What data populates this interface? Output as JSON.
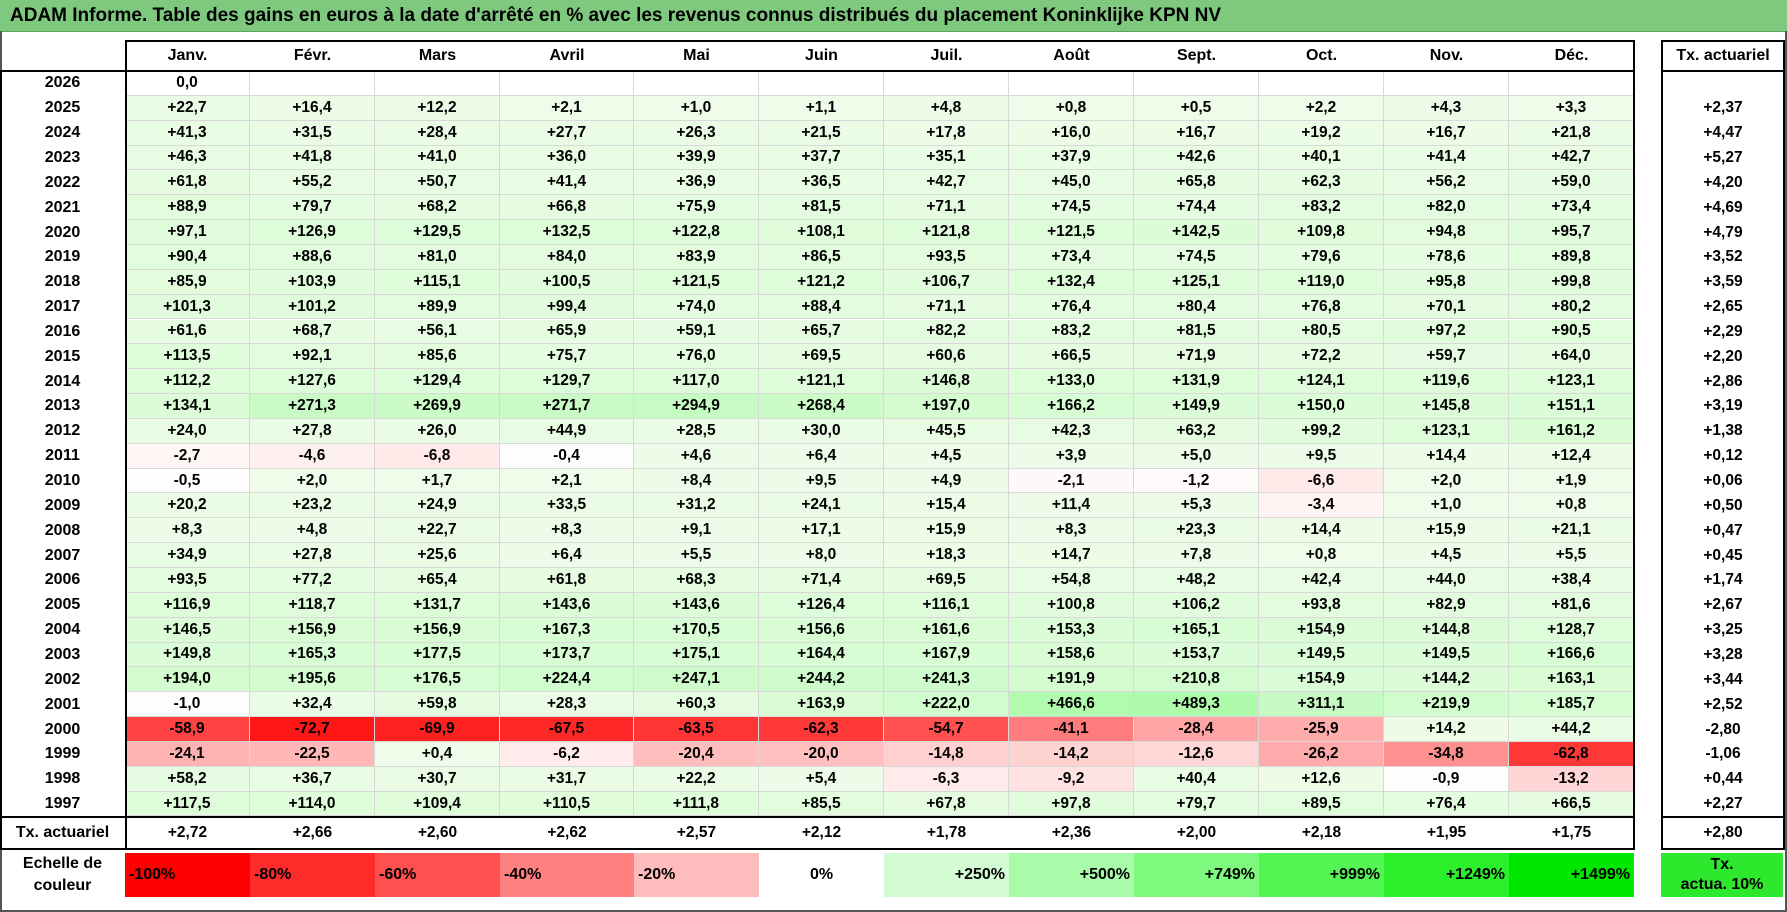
{
  "title": "ADAM Informe. Table des gains en euros à la date d'arrêté en % avec les revenus connus distribués du placement Koninklijke KPN NV",
  "months": [
    "Janv.",
    "Févr.",
    "Mars",
    "Avril",
    "Mai",
    "Juin",
    "Juil.",
    "Août",
    "Sept.",
    "Oct.",
    "Nov.",
    "Déc."
  ],
  "rate_header": "Tx. actuariel",
  "rows": [
    {
      "year": "2026",
      "values": [
        "0,0",
        "",
        "",
        "",
        "",
        "",
        "",
        "",
        "",
        "",
        "",
        ""
      ],
      "rate": ""
    },
    {
      "year": "2025",
      "values": [
        "+22,7",
        "+16,4",
        "+12,2",
        "+2,1",
        "+1,0",
        "+1,1",
        "+4,8",
        "+0,8",
        "+0,5",
        "+2,2",
        "+4,3",
        "+3,3"
      ],
      "rate": "+2,37"
    },
    {
      "year": "2024",
      "values": [
        "+41,3",
        "+31,5",
        "+28,4",
        "+27,7",
        "+26,3",
        "+21,5",
        "+17,8",
        "+16,0",
        "+16,7",
        "+19,2",
        "+16,7",
        "+21,8"
      ],
      "rate": "+4,47"
    },
    {
      "year": "2023",
      "values": [
        "+46,3",
        "+41,8",
        "+41,0",
        "+36,0",
        "+39,9",
        "+37,7",
        "+35,1",
        "+37,9",
        "+42,6",
        "+40,1",
        "+41,4",
        "+42,7"
      ],
      "rate": "+5,27"
    },
    {
      "year": "2022",
      "values": [
        "+61,8",
        "+55,2",
        "+50,7",
        "+41,4",
        "+36,9",
        "+36,5",
        "+42,7",
        "+45,0",
        "+65,8",
        "+62,3",
        "+56,2",
        "+59,0"
      ],
      "rate": "+4,20"
    },
    {
      "year": "2021",
      "values": [
        "+88,9",
        "+79,7",
        "+68,2",
        "+66,8",
        "+75,9",
        "+81,5",
        "+71,1",
        "+74,5",
        "+74,4",
        "+83,2",
        "+82,0",
        "+73,4"
      ],
      "rate": "+4,69"
    },
    {
      "year": "2020",
      "values": [
        "+97,1",
        "+126,9",
        "+129,5",
        "+132,5",
        "+122,8",
        "+108,1",
        "+121,8",
        "+121,5",
        "+142,5",
        "+109,8",
        "+94,8",
        "+95,7"
      ],
      "rate": "+4,79"
    },
    {
      "year": "2019",
      "values": [
        "+90,4",
        "+88,6",
        "+81,0",
        "+84,0",
        "+83,9",
        "+86,5",
        "+93,5",
        "+73,4",
        "+74,5",
        "+79,6",
        "+78,6",
        "+89,8"
      ],
      "rate": "+3,52"
    },
    {
      "year": "2018",
      "values": [
        "+85,9",
        "+103,9",
        "+115,1",
        "+100,5",
        "+121,5",
        "+121,2",
        "+106,7",
        "+132,4",
        "+125,1",
        "+119,0",
        "+95,8",
        "+99,8"
      ],
      "rate": "+3,59"
    },
    {
      "year": "2017",
      "values": [
        "+101,3",
        "+101,2",
        "+89,9",
        "+99,4",
        "+74,0",
        "+88,4",
        "+71,1",
        "+76,4",
        "+80,4",
        "+76,8",
        "+70,1",
        "+80,2"
      ],
      "rate": "+2,65"
    },
    {
      "year": "2016",
      "values": [
        "+61,6",
        "+68,7",
        "+56,1",
        "+65,9",
        "+59,1",
        "+65,7",
        "+82,2",
        "+83,2",
        "+81,5",
        "+80,5",
        "+97,2",
        "+90,5"
      ],
      "rate": "+2,29"
    },
    {
      "year": "2015",
      "values": [
        "+113,5",
        "+92,1",
        "+85,6",
        "+75,7",
        "+76,0",
        "+69,5",
        "+60,6",
        "+66,5",
        "+71,9",
        "+72,2",
        "+59,7",
        "+64,0"
      ],
      "rate": "+2,20"
    },
    {
      "year": "2014",
      "values": [
        "+112,2",
        "+127,6",
        "+129,4",
        "+129,7",
        "+117,0",
        "+121,1",
        "+146,8",
        "+133,0",
        "+131,9",
        "+124,1",
        "+119,6",
        "+123,1"
      ],
      "rate": "+2,86"
    },
    {
      "year": "2013",
      "values": [
        "+134,1",
        "+271,3",
        "+269,9",
        "+271,7",
        "+294,9",
        "+268,4",
        "+197,0",
        "+166,2",
        "+149,9",
        "+150,0",
        "+145,8",
        "+151,1"
      ],
      "rate": "+3,19"
    },
    {
      "year": "2012",
      "values": [
        "+24,0",
        "+27,8",
        "+26,0",
        "+44,9",
        "+28,5",
        "+30,0",
        "+45,5",
        "+42,3",
        "+63,2",
        "+99,2",
        "+123,1",
        "+161,2"
      ],
      "rate": "+1,38"
    },
    {
      "year": "2011",
      "values": [
        "-2,7",
        "-4,6",
        "-6,8",
        "-0,4",
        "+4,6",
        "+6,4",
        "+4,5",
        "+3,9",
        "+5,0",
        "+9,5",
        "+14,4",
        "+12,4"
      ],
      "rate": "+0,12"
    },
    {
      "year": "2010",
      "values": [
        "-0,5",
        "+2,0",
        "+1,7",
        "+2,1",
        "+8,4",
        "+9,5",
        "+4,9",
        "-2,1",
        "-1,2",
        "-6,6",
        "+2,0",
        "+1,9"
      ],
      "rate": "+0,06"
    },
    {
      "year": "2009",
      "values": [
        "+20,2",
        "+23,2",
        "+24,9",
        "+33,5",
        "+31,2",
        "+24,1",
        "+15,4",
        "+11,4",
        "+5,3",
        "-3,4",
        "+1,0",
        "+0,8"
      ],
      "rate": "+0,50"
    },
    {
      "year": "2008",
      "values": [
        "+8,3",
        "+4,8",
        "+22,7",
        "+8,3",
        "+9,1",
        "+17,1",
        "+15,9",
        "+8,3",
        "+23,3",
        "+14,4",
        "+15,9",
        "+21,1"
      ],
      "rate": "+0,47"
    },
    {
      "year": "2007",
      "values": [
        "+34,9",
        "+27,8",
        "+25,6",
        "+6,4",
        "+5,5",
        "+8,0",
        "+18,3",
        "+14,7",
        "+7,8",
        "+0,8",
        "+4,5",
        "+5,5"
      ],
      "rate": "+0,45"
    },
    {
      "year": "2006",
      "values": [
        "+93,5",
        "+77,2",
        "+65,4",
        "+61,8",
        "+68,3",
        "+71,4",
        "+69,5",
        "+54,8",
        "+48,2",
        "+42,4",
        "+44,0",
        "+38,4"
      ],
      "rate": "+1,74"
    },
    {
      "year": "2005",
      "values": [
        "+116,9",
        "+118,7",
        "+131,7",
        "+143,6",
        "+143,6",
        "+126,4",
        "+116,1",
        "+100,8",
        "+106,2",
        "+93,8",
        "+82,9",
        "+81,6"
      ],
      "rate": "+2,67"
    },
    {
      "year": "2004",
      "values": [
        "+146,5",
        "+156,9",
        "+156,9",
        "+167,3",
        "+170,5",
        "+156,6",
        "+161,6",
        "+153,3",
        "+165,1",
        "+154,9",
        "+144,8",
        "+128,7"
      ],
      "rate": "+3,25"
    },
    {
      "year": "2003",
      "values": [
        "+149,8",
        "+165,3",
        "+177,5",
        "+173,7",
        "+175,1",
        "+164,4",
        "+167,9",
        "+158,6",
        "+153,7",
        "+149,5",
        "+149,5",
        "+166,6"
      ],
      "rate": "+3,28"
    },
    {
      "year": "2002",
      "values": [
        "+194,0",
        "+195,6",
        "+176,5",
        "+224,4",
        "+247,1",
        "+244,2",
        "+241,3",
        "+191,9",
        "+210,8",
        "+154,9",
        "+144,2",
        "+163,1"
      ],
      "rate": "+3,44"
    },
    {
      "year": "2001",
      "values": [
        "-1,0",
        "+32,4",
        "+59,8",
        "+28,3",
        "+60,3",
        "+163,9",
        "+222,0",
        "+466,6",
        "+489,3",
        "+311,1",
        "+219,9",
        "+185,7"
      ],
      "rate": "+2,52"
    },
    {
      "year": "2000",
      "values": [
        "-58,9",
        "-72,7",
        "-69,9",
        "-67,5",
        "-63,5",
        "-62,3",
        "-54,7",
        "-41,1",
        "-28,4",
        "-25,9",
        "+14,2",
        "+44,2"
      ],
      "rate": "-2,80"
    },
    {
      "year": "1999",
      "values": [
        "-24,1",
        "-22,5",
        "+0,4",
        "-6,2",
        "-20,4",
        "-20,0",
        "-14,8",
        "-14,2",
        "-12,6",
        "-26,2",
        "-34,8",
        "-62,8"
      ],
      "rate": "-1,06"
    },
    {
      "year": "1998",
      "values": [
        "+58,2",
        "+36,7",
        "+30,7",
        "+31,7",
        "+22,2",
        "+5,4",
        "-6,3",
        "-9,2",
        "+40,4",
        "+12,6",
        "-0,9",
        "-13,2"
      ],
      "rate": "+0,44"
    },
    {
      "year": "1997",
      "values": [
        "+117,5",
        "+114,0",
        "+109,4",
        "+110,5",
        "+111,8",
        "+85,5",
        "+67,8",
        "+97,8",
        "+79,7",
        "+89,5",
        "+76,4",
        "+66,5"
      ],
      "rate": "+2,27"
    }
  ],
  "total_row": {
    "label": "Tx. actuariel",
    "values": [
      "+2,72",
      "+2,66",
      "+2,60",
      "+2,62",
      "+2,57",
      "+2,12",
      "+1,78",
      "+2,36",
      "+2,00",
      "+2,18",
      "+1,95",
      "+1,75"
    ],
    "rate": "+2,80"
  },
  "legend": {
    "label_line1": "Echelle de",
    "label_line2": "couleur",
    "scale": [
      {
        "text": "-100%",
        "color": "#ff0000"
      },
      {
        "text": "-80%",
        "color": "#ff2b2b"
      },
      {
        "text": "-60%",
        "color": "#ff5050"
      },
      {
        "text": "-40%",
        "color": "#ff8080"
      },
      {
        "text": "-20%",
        "color": "#ffbcbc"
      },
      {
        "text": "0%",
        "color": "#ffffff"
      },
      {
        "text": "+250%",
        "color": "#d4fcd4"
      },
      {
        "text": "+500%",
        "color": "#a8fba8"
      },
      {
        "text": "+749%",
        "color": "#7efa7e"
      },
      {
        "text": "+999%",
        "color": "#52f552"
      },
      {
        "text": "+1249%",
        "color": "#2cf02c"
      },
      {
        "text": "+1499%",
        "color": "#00e800"
      }
    ],
    "tx_line1": "Tx.",
    "tx_line2": "actua. 10%",
    "tx_color": "#2ee82e"
  },
  "colors": {
    "title_bg": "#7fc97f",
    "positive_light": "#eefce9"
  }
}
